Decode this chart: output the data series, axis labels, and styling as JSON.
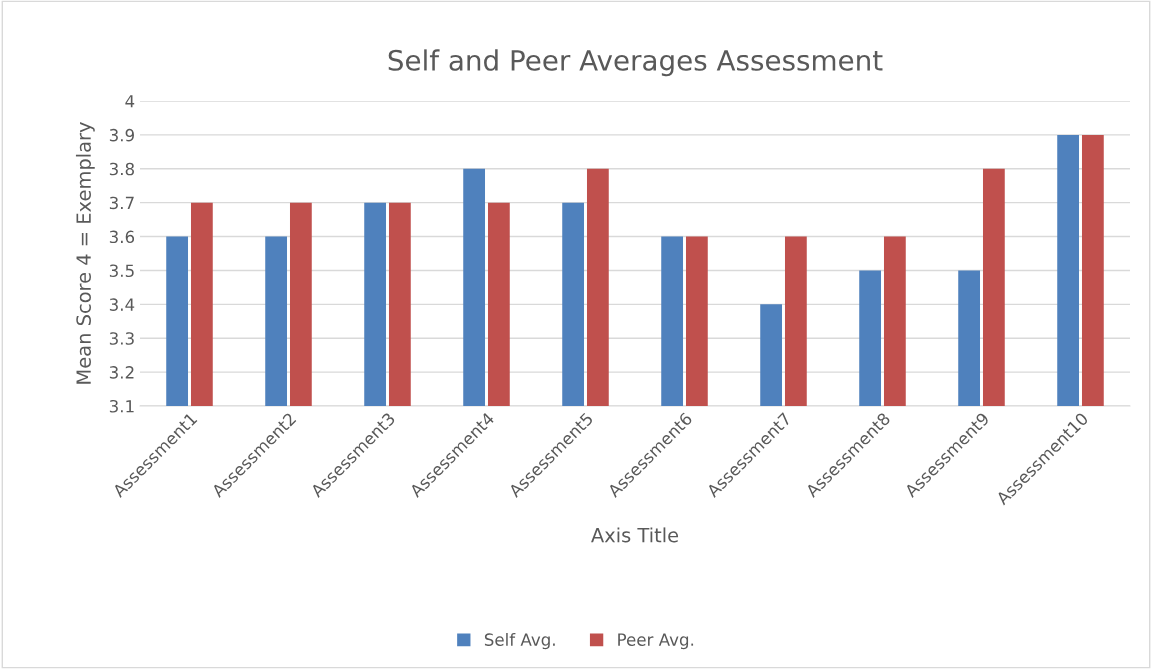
{
  "chart_data": {
    "type": "bar",
    "title": "Self and Peer Averages Assessment",
    "xlabel": "Axis Title",
    "ylabel": "Mean Score 4 = Exemplary",
    "categories": [
      "Assessment1",
      "Assessment2",
      "Assessment3",
      "Assessment4",
      "Assessment5",
      "Assessment6",
      "Assessment7",
      "Assessment8",
      "Assessment9",
      "Assessment10"
    ],
    "series": [
      {
        "name": "Self Avg.",
        "color": "#4f81bd",
        "values": [
          3.6,
          3.6,
          3.7,
          3.8,
          3.7,
          3.6,
          3.4,
          3.5,
          3.5,
          3.9
        ]
      },
      {
        "name": "Peer Avg.",
        "color": "#c0504d",
        "values": [
          3.7,
          3.7,
          3.7,
          3.7,
          3.8,
          3.6,
          3.6,
          3.6,
          3.8,
          3.9
        ]
      }
    ],
    "ylim": [
      3.1,
      4
    ],
    "yticks": [
      3.1,
      3.2,
      3.3,
      3.4,
      3.5,
      3.6,
      3.7,
      3.8,
      3.9,
      4
    ],
    "grid": "y",
    "legend": "bottom"
  }
}
